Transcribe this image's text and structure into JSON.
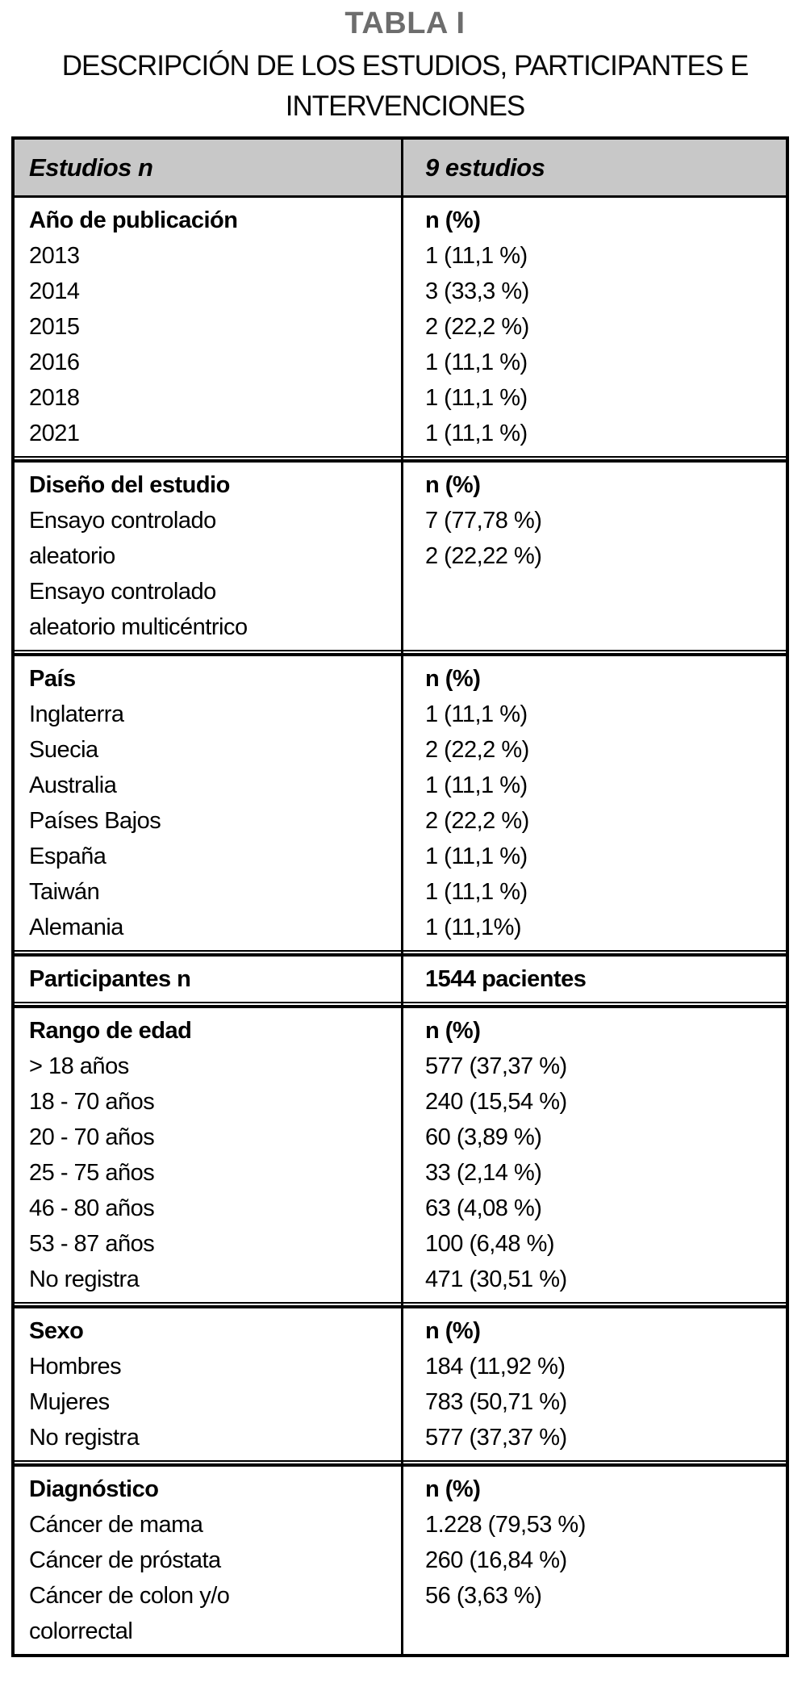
{
  "title": "TABLA I",
  "subtitle": {
    "line1": "DESCRIPCIÓN DE LOS ESTUDIOS, PARTICIPANTES E",
    "line2": "INTERVENCIONES"
  },
  "colors": {
    "title_gray": "#6d6d6d",
    "header_background": "#c8c8c8",
    "border_black": "#000000"
  },
  "table": {
    "header": {
      "col1": "Estudios n",
      "col2": "9 estudios"
    },
    "sections": [
      {
        "name": "año-de-publicacion",
        "left": [
          "Año de publicación",
          "2013",
          "2014",
          "2015",
          "2016",
          "2018",
          "2021"
        ],
        "right": [
          "n (%)",
          "1 (11,1 %)",
          "3 (33,3 %)",
          "2 (22,2 %)",
          "1 (11,1 %)",
          "1 (11,1 %)",
          "1 (11,1 %)"
        ]
      },
      {
        "name": "diseño-del-estudio",
        "left": [
          "Diseño del estudio",
          "Ensayo controlado",
          "aleatorio",
          "Ensayo controlado",
          "aleatorio multicéntrico"
        ],
        "right": [
          "n (%)",
          "7 (77,78 %)",
          "2 (22,22 %)"
        ]
      },
      {
        "name": "pais",
        "left": [
          "País",
          "Inglaterra",
          "Suecia",
          "Australia",
          "Países Bajos",
          "España",
          "Taiwán",
          "Alemania"
        ],
        "right": [
          "n (%)",
          "1 (11,1 %)",
          "2 (22,2 %)",
          "1 (11,1 %)",
          "2 (22,2 %)",
          "1 (11,1 %)",
          "1 (11,1 %)",
          "1 (11,1%)"
        ]
      },
      {
        "name": "participantes",
        "left": [
          "Participantes n"
        ],
        "right": [
          "1544 pacientes"
        ]
      },
      {
        "name": "rango-de-edad",
        "left": [
          "Rango de edad",
          "> 18 años",
          "18 - 70 años",
          "20 - 70 años",
          "25 - 75 años",
          "46 - 80 años",
          "53 - 87 años",
          "No registra"
        ],
        "right": [
          "n (%)",
          "577 (37,37 %)",
          "240 (15,54 %)",
          "60 (3,89 %)",
          "33 (2,14 %)",
          "63 (4,08 %)",
          "100 (6,48 %)",
          "471 (30,51 %)"
        ]
      },
      {
        "name": "sexo",
        "left": [
          "Sexo",
          "Hombres",
          "Mujeres",
          "No registra"
        ],
        "right": [
          "n (%)",
          "184 (11,92 %)",
          "783 (50,71 %)",
          "577 (37,37 %)"
        ]
      },
      {
        "name": "diagnostico",
        "left": [
          "Diagnóstico",
          "Cáncer de mama",
          "Cáncer de próstata",
          "Cáncer de colon y/o",
          "colorrectal"
        ],
        "right": [
          "n (%)",
          "1.228 (79,53 %)",
          "260 (16,84 %)",
          "56 (3,63 %)"
        ]
      }
    ]
  }
}
